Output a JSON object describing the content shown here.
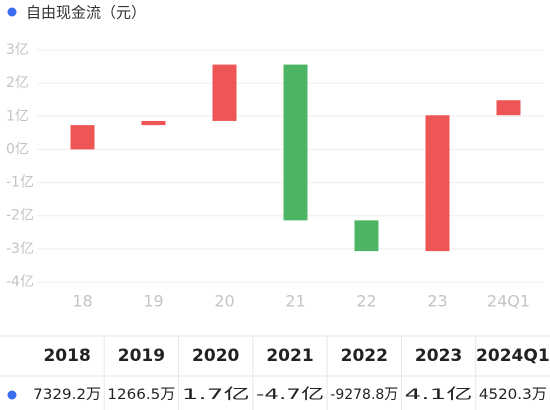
{
  "chart_data": {
    "type": "waterfall",
    "title": "自由现金流（元）",
    "series_name_color": "#3b6cf0",
    "categories": [
      "18",
      "19",
      "20",
      "21",
      "22",
      "23",
      "24Q1"
    ],
    "values": [
      0.73292,
      0.12665,
      1.7,
      -4.7,
      -0.92788,
      4.1,
      0.45203
    ],
    "up_color": "#ee5656",
    "down_color": "#4cb462",
    "ylim": [
      -4,
      3
    ],
    "yticks": [
      {
        "value": 3,
        "label": "3亿"
      },
      {
        "value": 2,
        "label": "2亿"
      },
      {
        "value": 1,
        "label": "1亿"
      },
      {
        "value": 0,
        "label": "0亿"
      },
      {
        "value": -1,
        "label": "-1亿"
      },
      {
        "value": -2,
        "label": "-2亿"
      },
      {
        "value": -3,
        "label": "-3亿"
      },
      {
        "value": -4,
        "label": "-4亿"
      }
    ],
    "grid": true
  },
  "table": {
    "header": [
      "2018",
      "2019",
      "2020",
      "2021",
      "2022",
      "2023",
      "2024Q1"
    ],
    "value_labels": [
      "7329.2万",
      "1266.5万",
      "1.7亿",
      "-4.7亿",
      "-9278.8万",
      "4.1亿",
      "4520.3万"
    ]
  }
}
